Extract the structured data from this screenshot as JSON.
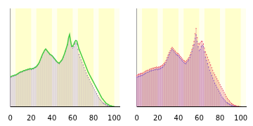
{
  "chart_data": [
    {
      "type": "bar",
      "x": [
        0,
        1,
        2,
        3,
        4,
        5,
        6,
        7,
        8,
        9,
        10,
        11,
        12,
        13,
        14,
        15,
        16,
        17,
        18,
        19,
        20,
        21,
        22,
        23,
        24,
        25,
        26,
        27,
        28,
        29,
        30,
        31,
        32,
        33,
        34,
        35,
        36,
        37,
        38,
        39,
        40,
        41,
        42,
        43,
        44,
        45,
        46,
        47,
        48,
        49,
        50,
        51,
        52,
        53,
        54,
        55,
        56,
        57,
        58,
        59,
        60,
        61,
        62,
        63,
        64,
        65,
        66,
        67,
        68,
        69,
        70,
        71,
        72,
        73,
        74,
        75,
        76,
        77,
        78,
        79,
        80,
        81,
        82,
        83,
        84,
        85,
        86,
        87,
        88,
        89,
        90,
        91,
        92,
        93,
        94,
        95,
        96,
        97,
        98,
        99,
        100
      ],
      "xlim": [
        -0.5,
        105
      ],
      "xticks": [
        0,
        20,
        40,
        60,
        80,
        100
      ],
      "ylim": [
        0,
        150
      ],
      "tick_labels": "x",
      "series": [
        {
          "color": "#9a7fb0",
          "values": [
            45,
            46,
            47,
            47,
            48,
            48,
            49,
            50,
            51,
            52,
            53,
            53,
            54,
            55,
            55,
            56,
            56,
            57,
            57,
            58,
            57,
            58,
            58,
            59,
            60,
            61,
            63,
            65,
            68,
            72,
            76,
            80,
            83,
            86,
            88,
            86,
            84,
            82,
            80,
            79,
            78,
            76,
            74,
            72,
            70,
            68,
            67,
            66,
            68,
            70,
            72,
            76,
            80,
            85,
            90,
            95,
            105,
            110,
            100,
            92,
            90,
            92,
            96,
            98,
            96,
            88,
            80,
            76,
            72,
            68,
            64,
            60,
            56,
            52,
            48,
            45,
            42,
            38,
            35,
            32,
            29,
            26,
            23,
            20,
            17,
            14,
            12,
            10,
            8,
            6,
            5,
            4,
            3,
            2,
            2,
            1,
            1,
            1,
            0,
            0,
            0
          ]
        },
        {
          "type": "line",
          "color": "#44cc44",
          "values": [
            45,
            46,
            47,
            47,
            48,
            48,
            49,
            50,
            51,
            52,
            53,
            53,
            54,
            55,
            55,
            56,
            56,
            57,
            57,
            58,
            57,
            58,
            58,
            59,
            60,
            61,
            63,
            65,
            68,
            72,
            76,
            80,
            83,
            86,
            88,
            86,
            84,
            82,
            80,
            79,
            78,
            76,
            74,
            72,
            70,
            68,
            67,
            66,
            68,
            70,
            72,
            76,
            80,
            85,
            90,
            95,
            105,
            110,
            100,
            92,
            92,
            95,
            99,
            101,
            100,
            94,
            88,
            84,
            80,
            76,
            72,
            68,
            64,
            60,
            56,
            52,
            49,
            46,
            43,
            40,
            37,
            34,
            31,
            28,
            25,
            22,
            19,
            16,
            13,
            11,
            9,
            7,
            5,
            4,
            3,
            2,
            1,
            1,
            0,
            0,
            0
          ]
        }
      ]
    },
    {
      "type": "bar",
      "x": [
        0,
        1,
        2,
        3,
        4,
        5,
        6,
        7,
        8,
        9,
        10,
        11,
        12,
        13,
        14,
        15,
        16,
        17,
        18,
        19,
        20,
        21,
        22,
        23,
        24,
        25,
        26,
        27,
        28,
        29,
        30,
        31,
        32,
        33,
        34,
        35,
        36,
        37,
        38,
        39,
        40,
        41,
        42,
        43,
        44,
        45,
        46,
        47,
        48,
        49,
        50,
        51,
        52,
        53,
        54,
        55,
        56,
        57,
        58,
        59,
        60,
        61,
        62,
        63,
        64,
        65,
        66,
        67,
        68,
        69,
        70,
        71,
        72,
        73,
        74,
        75,
        76,
        77,
        78,
        79,
        80,
        81,
        82,
        83,
        84,
        85,
        86,
        87,
        88,
        89,
        90,
        91,
        92,
        93,
        94,
        95,
        96,
        97,
        98,
        99,
        100
      ],
      "xlim": [
        -0.5,
        105
      ],
      "xticks": [
        0,
        20,
        40,
        60,
        80,
        100
      ],
      "ylim": [
        0,
        150
      ],
      "tick_labels": "x",
      "series": [
        {
          "color": "#e8506a",
          "values": [
            48,
            49,
            50,
            50,
            51,
            51,
            52,
            53,
            54,
            55,
            56,
            56,
            57,
            58,
            58,
            59,
            59,
            60,
            60,
            61,
            60,
            61,
            61,
            62,
            63,
            64,
            66,
            68,
            71,
            75,
            79,
            83,
            86,
            89,
            91,
            89,
            87,
            85,
            83,
            82,
            81,
            79,
            77,
            75,
            73,
            71,
            70,
            69,
            71,
            73,
            75,
            79,
            83,
            88,
            94,
            100,
            112,
            120,
            106,
            97,
            96,
            98,
            100,
            100,
            96,
            90,
            84,
            80,
            76,
            72,
            68,
            64,
            60,
            56,
            52,
            49,
            46,
            43,
            40,
            37,
            34,
            31,
            28,
            25,
            22,
            19,
            16,
            13,
            11,
            9,
            7,
            5,
            4,
            3,
            2,
            2,
            1,
            1,
            1,
            0,
            0
          ]
        },
        {
          "color": "#6a5ae0",
          "values": [
            45,
            46,
            47,
            47,
            48,
            48,
            49,
            50,
            51,
            52,
            53,
            53,
            54,
            55,
            55,
            56,
            56,
            57,
            57,
            58,
            57,
            58,
            58,
            59,
            60,
            61,
            63,
            65,
            68,
            72,
            76,
            80,
            83,
            86,
            88,
            86,
            84,
            82,
            80,
            79,
            78,
            76,
            74,
            72,
            70,
            68,
            67,
            66,
            68,
            70,
            72,
            76,
            80,
            85,
            90,
            95,
            105,
            110,
            100,
            92,
            86,
            88,
            92,
            94,
            92,
            84,
            76,
            71,
            66,
            61,
            56,
            52,
            48,
            44,
            40,
            36,
            33,
            30,
            27,
            24,
            21,
            18,
            15,
            13,
            11,
            9,
            7,
            6,
            5,
            4,
            3,
            2,
            2,
            1,
            1,
            1,
            0,
            0,
            0,
            0,
            0
          ]
        }
      ]
    }
  ]
}
